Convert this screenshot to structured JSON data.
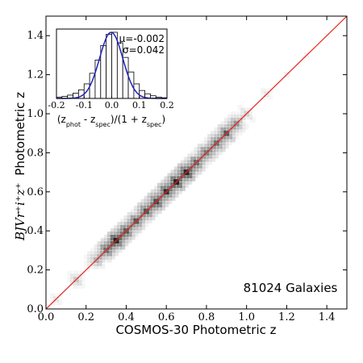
{
  "chart_data": [
    {
      "type": "heatmap",
      "xlabel": "COSMOS-30 Photometric z",
      "ylabel_math": "BJVr⁺i⁺z⁺",
      "ylabel_text": "Photometric z",
      "xlim": [
        0.0,
        1.5
      ],
      "ylim": [
        0.0,
        1.5
      ],
      "x_ticks": [
        "0.0",
        "0.2",
        "0.4",
        "0.6",
        "0.8",
        "1.0",
        "1.2",
        "1.4"
      ],
      "y_ticks": [
        "0.0",
        "0.2",
        "0.4",
        "0.6",
        "0.8",
        "1.0",
        "1.2",
        "1.4"
      ],
      "reference_line": {
        "from": [
          0.0,
          0.0
        ],
        "to": [
          1.5,
          1.5
        ],
        "color": "#e8201c"
      },
      "annotation": "81024 Galaxies",
      "density_ridge": [
        {
          "z": 0.05,
          "density": 0.1
        },
        {
          "z": 0.15,
          "density": 0.18
        },
        {
          "z": 0.25,
          "density": 0.3
        },
        {
          "z": 0.3,
          "density": 0.55
        },
        {
          "z": 0.35,
          "density": 0.9
        },
        {
          "z": 0.4,
          "density": 0.65
        },
        {
          "z": 0.45,
          "density": 0.55
        },
        {
          "z": 0.5,
          "density": 0.6
        },
        {
          "z": 0.55,
          "density": 0.7
        },
        {
          "z": 0.6,
          "density": 0.75
        },
        {
          "z": 0.65,
          "density": 0.8
        },
        {
          "z": 0.7,
          "density": 0.85
        },
        {
          "z": 0.75,
          "density": 0.55
        },
        {
          "z": 0.8,
          "density": 0.5
        },
        {
          "z": 0.85,
          "density": 0.6
        },
        {
          "z": 0.9,
          "density": 0.55
        },
        {
          "z": 0.95,
          "density": 0.35
        },
        {
          "z": 1.0,
          "density": 0.15
        },
        {
          "z": 1.1,
          "density": 0.1
        },
        {
          "z": 1.2,
          "density": 0.07
        },
        {
          "z": 1.3,
          "density": 0.05
        },
        {
          "z": 1.4,
          "density": 0.04
        }
      ],
      "colors": {
        "density": "#000000",
        "reference_line": "#e8201c"
      }
    },
    {
      "type": "bar",
      "xlabel": "(z_phot - z_spec)/(1 + z_spec)",
      "xlim": [
        -0.2,
        0.2
      ],
      "x_ticks": [
        "-0.2",
        "-0.1",
        "0.0",
        "0.1",
        "0.2"
      ],
      "stats": {
        "mu": "μ=-0.002",
        "sigma": "σ=0.042"
      },
      "bin_centers": [
        -0.19,
        -0.17,
        -0.15,
        -0.13,
        -0.11,
        -0.09,
        -0.07,
        -0.05,
        -0.03,
        -0.01,
        0.01,
        0.03,
        0.05,
        0.07,
        0.09,
        0.11,
        0.13,
        0.15,
        0.17,
        0.19
      ],
      "counts": [
        0.02,
        0.03,
        0.05,
        0.08,
        0.13,
        0.22,
        0.38,
        0.58,
        0.8,
        0.97,
        1.0,
        0.84,
        0.62,
        0.4,
        0.22,
        0.12,
        0.07,
        0.04,
        0.02,
        0.01
      ],
      "gaussian_fit": {
        "mu": -0.002,
        "sigma": 0.042,
        "color": "#1f1fbf"
      }
    }
  ]
}
